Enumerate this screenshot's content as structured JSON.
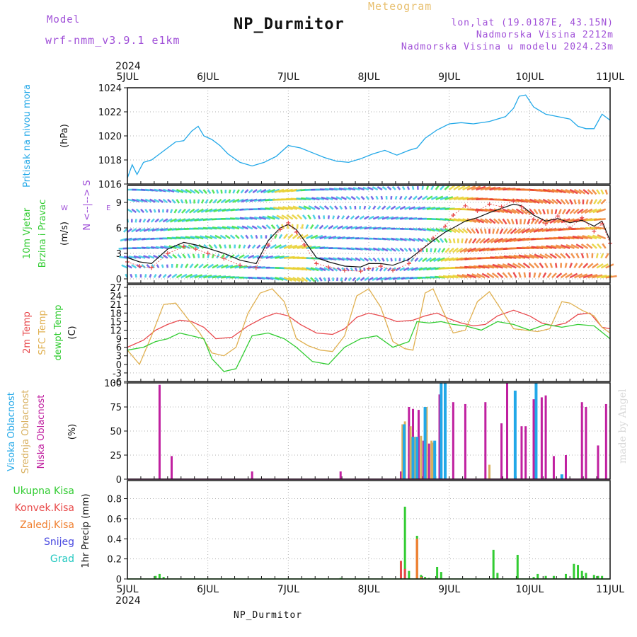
{
  "header": {
    "model_label": "Model",
    "model_name": "wrf-nmm_v3.9.1  e1km",
    "product": "Meteogram",
    "title": "NP_Durmitor",
    "coords": "lon,lat (19.0187E, 43.15N)",
    "elevation": "Nadmorska Visina 2212m",
    "model_elevation": "Nadmorska Visina u modelu 2024.23m"
  },
  "footer": {
    "station": "NP_Durmitor"
  },
  "credit": "made by Angel",
  "colors": {
    "pressure": "#22a8e8",
    "temp2m": "#e8484c",
    "sfc_temp": "#e0b050",
    "dewpt": "#32cc32",
    "cloud_high": "#22a8e8",
    "cloud_mid": "#d8b060",
    "cloud_low": "#c020a0",
    "precip_total": "#32cc32",
    "precip_conv": "#e84848",
    "precip_frz": "#f08030",
    "snow": "#4848e0",
    "hail": "#22c8c0",
    "wind_speed": "#111111",
    "wind_gust": "#e84848",
    "grid": "#b0b0b0"
  },
  "chart_data": [
    {
      "type": "line",
      "title": "",
      "ylabel": [
        "Pritisak na nivou mora",
        "(hPa)"
      ],
      "ylim": [
        1016,
        1024
      ],
      "yticks": [
        "1016",
        "1018",
        "1020",
        "1022",
        "1024"
      ],
      "x_year": "2024",
      "x_ticks": [
        "5JUL",
        "6JUL",
        "7JUL",
        "8JUL",
        "9JUL",
        "10JUL",
        "11JUL"
      ],
      "xlim": [
        0,
        6
      ],
      "series": [
        {
          "key": "pressure",
          "x": [
            0,
            0.06,
            0.12,
            0.2,
            0.3,
            0.4,
            0.5,
            0.6,
            0.7,
            0.8,
            0.88,
            0.95,
            1.05,
            1.15,
            1.25,
            1.4,
            1.55,
            1.7,
            1.85,
            2.0,
            2.15,
            2.3,
            2.45,
            2.6,
            2.75,
            2.9,
            3.05,
            3.2,
            3.35,
            3.5,
            3.6,
            3.7,
            3.85,
            4.0,
            4.15,
            4.3,
            4.5,
            4.7,
            4.8,
            4.87,
            4.95,
            5.05,
            5.2,
            5.35,
            5.5,
            5.6,
            5.7,
            5.8,
            5.9,
            6.0
          ],
          "y": [
            1016.5,
            1017.6,
            1016.8,
            1017.8,
            1018.0,
            1018.5,
            1019.0,
            1019.5,
            1019.6,
            1020.4,
            1020.8,
            1020.0,
            1019.7,
            1019.2,
            1018.5,
            1017.8,
            1017.5,
            1017.8,
            1018.3,
            1019.2,
            1019.0,
            1018.6,
            1018.2,
            1017.9,
            1017.8,
            1018.1,
            1018.5,
            1018.8,
            1018.4,
            1018.8,
            1019.0,
            1019.8,
            1020.5,
            1021.0,
            1021.1,
            1021.0,
            1021.2,
            1021.6,
            1022.3,
            1023.3,
            1023.4,
            1022.4,
            1021.8,
            1021.6,
            1021.4,
            1020.8,
            1020.6,
            1020.6,
            1021.8,
            1021.3
          ]
        }
      ]
    },
    {
      "type": "quiver",
      "title": "",
      "ylabel": [
        "10m Vjetar",
        "Brzina i Pravac",
        "(m/s)"
      ],
      "compass": [
        "N",
        "<--|-->",
        "E",
        "W",
        "S"
      ],
      "ylim": [
        -0.5,
        11
      ],
      "yticks": [
        "0",
        "3",
        "6",
        "9"
      ],
      "series": [
        {
          "key": "wind_speed",
          "name": "",
          "x": [
            0,
            0.15,
            0.3,
            0.5,
            0.7,
            0.85,
            1.0,
            1.2,
            1.4,
            1.6,
            1.75,
            1.9,
            2.0,
            2.1,
            2.2,
            2.35,
            2.5,
            2.7,
            2.9,
            3.0,
            3.15,
            3.3,
            3.5,
            3.65,
            3.8,
            3.95,
            4.05,
            4.2,
            4.35,
            4.5,
            4.65,
            4.8,
            4.9,
            5.05,
            5.2,
            5.35,
            5.5,
            5.65,
            5.8,
            5.9,
            6.0
          ],
          "y": [
            2.5,
            2.0,
            1.8,
            3.5,
            4.3,
            4.0,
            3.6,
            3.0,
            2.2,
            1.8,
            4.5,
            6.0,
            6.4,
            5.8,
            4.5,
            2.5,
            2.0,
            1.5,
            1.4,
            1.8,
            1.8,
            1.6,
            2.3,
            3.4,
            4.5,
            5.5,
            6.0,
            6.8,
            7.2,
            7.8,
            8.3,
            8.8,
            8.6,
            7.5,
            6.8,
            7.1,
            6.6,
            6.9,
            6.2,
            6.8,
            4.5
          ]
        },
        {
          "key": "wind_gust",
          "name": "",
          "x": [
            0,
            0.15,
            0.3,
            0.5,
            0.7,
            0.85,
            1.0,
            1.2,
            1.4,
            1.6,
            1.75,
            1.9,
            2.0,
            2.1,
            2.2,
            2.35,
            2.5,
            2.7,
            2.9,
            3.0,
            3.15,
            3.3,
            3.5,
            3.65,
            3.8,
            3.95,
            4.05,
            4.2,
            4.35,
            4.5,
            4.65,
            4.8,
            4.9,
            5.05,
            5.2,
            5.35,
            5.5,
            5.65,
            5.8,
            5.9,
            6.0
          ],
          "y": [
            2.0,
            1.5,
            1.3,
            3.0,
            3.8,
            3.5,
            3.0,
            2.4,
            1.6,
            1.3,
            4.0,
            5.8,
            6.6,
            5.5,
            4.0,
            1.8,
            1.4,
            1.0,
            0.9,
            1.2,
            1.5,
            1.0,
            1.8,
            3.4,
            4.8,
            6.2,
            7.5,
            8.6,
            8.0,
            8.8,
            8.5,
            9.2,
            8.5,
            7.0,
            6.5,
            7.4,
            6.0,
            7.2,
            5.6,
            6.5,
            4.2
          ]
        }
      ]
    },
    {
      "type": "line",
      "title": "",
      "ylabel": [
        "2m Temp",
        "SFC Temp",
        "dewpt Temp",
        "(C)"
      ],
      "ylim": [
        -6,
        28
      ],
      "yticks": [
        "-6",
        "-3",
        "0",
        "3",
        "6",
        "9",
        "12",
        "15",
        "18",
        "21",
        "24",
        "27"
      ],
      "series": [
        {
          "key": "temp2m",
          "x": [
            0,
            0.2,
            0.35,
            0.5,
            0.65,
            0.8,
            0.95,
            1.1,
            1.3,
            1.5,
            1.7,
            1.85,
            2.0,
            2.15,
            2.35,
            2.55,
            2.7,
            2.85,
            3.0,
            3.15,
            3.35,
            3.55,
            3.7,
            3.85,
            4.0,
            4.15,
            4.3,
            4.45,
            4.6,
            4.8,
            5.0,
            5.15,
            5.3,
            5.45,
            5.6,
            5.75,
            5.9,
            6.0
          ],
          "y": [
            6.0,
            8.5,
            12.0,
            14.0,
            15.5,
            15.0,
            13.0,
            9.0,
            9.5,
            13.5,
            16.5,
            18.0,
            17.0,
            14.0,
            11.0,
            10.5,
            12.5,
            16.5,
            18.0,
            17.0,
            15.0,
            15.5,
            17.0,
            18.0,
            16.0,
            14.5,
            13.5,
            14.0,
            17.0,
            19.0,
            17.0,
            14.5,
            13.5,
            14.5,
            17.5,
            18.0,
            13.0,
            12.5
          ]
        },
        {
          "key": "sfc_temp",
          "x": [
            0,
            0.15,
            0.3,
            0.45,
            0.6,
            0.75,
            0.9,
            1.05,
            1.2,
            1.35,
            1.5,
            1.65,
            1.8,
            1.95,
            2.1,
            2.25,
            2.4,
            2.55,
            2.7,
            2.85,
            3.0,
            3.15,
            3.3,
            3.45,
            3.55,
            3.7,
            3.8,
            3.95,
            4.05,
            4.2,
            4.35,
            4.5,
            4.65,
            4.8,
            4.95,
            5.1,
            5.25,
            5.4,
            5.5,
            5.65,
            5.8,
            5.9,
            6.0
          ],
          "y": [
            5.0,
            0.0,
            10.0,
            21.0,
            21.5,
            16.0,
            11.0,
            4.0,
            3.0,
            6.0,
            18.0,
            25.0,
            26.5,
            22.0,
            9.0,
            6.5,
            5.0,
            4.5,
            10.0,
            24.0,
            26.5,
            20.0,
            8.0,
            5.5,
            5.0,
            25.0,
            26.5,
            17.0,
            11.0,
            12.0,
            22.0,
            25.5,
            19.0,
            12.5,
            12.0,
            11.5,
            12.5,
            22.0,
            21.5,
            19.0,
            17.0,
            13.0,
            11.0
          ]
        },
        {
          "key": "dewpt",
          "x": [
            0,
            0.2,
            0.35,
            0.5,
            0.65,
            0.8,
            0.95,
            1.05,
            1.2,
            1.35,
            1.55,
            1.75,
            1.95,
            2.1,
            2.3,
            2.5,
            2.7,
            2.9,
            3.1,
            3.3,
            3.5,
            3.6,
            3.75,
            3.9,
            4.05,
            4.2,
            4.4,
            4.6,
            4.8,
            5.0,
            5.2,
            5.4,
            5.6,
            5.8,
            6.0
          ],
          "y": [
            5.0,
            6.0,
            8.0,
            9.0,
            11.0,
            10.0,
            9.0,
            2.0,
            -2.5,
            -1.5,
            10.0,
            11.0,
            9.0,
            6.0,
            1.0,
            0.0,
            6.0,
            9.0,
            10.0,
            6.0,
            8.0,
            15.0,
            14.5,
            15.0,
            14.0,
            13.5,
            12.0,
            15.0,
            14.0,
            12.0,
            14.0,
            13.0,
            14.0,
            13.5,
            9.0
          ]
        }
      ]
    },
    {
      "type": "bar",
      "title": "",
      "ylabel": [
        "Visoka Oblacnost",
        "Srednja Oblacnost",
        "Niska Oblacnost",
        "(%)"
      ],
      "ylim": [
        0,
        100
      ],
      "yticks": [
        "0",
        "25",
        "50",
        "75",
        "100"
      ],
      "series": [
        {
          "key": "cloud_low",
          "x": [
            0.4,
            0.55,
            1.55,
            2.65,
            3.5,
            3.4,
            3.5,
            3.55,
            3.62,
            3.68,
            3.75,
            3.88,
            3.95,
            4.05,
            4.2,
            4.45,
            4.5,
            4.65,
            4.72,
            4.9,
            4.95,
            5.05,
            5.15,
            5.2,
            5.3,
            5.45,
            5.65,
            5.7,
            5.85,
            5.95
          ],
          "y": [
            98,
            24,
            8,
            8,
            5,
            8,
            75,
            73,
            72,
            40,
            37,
            88,
            80,
            80,
            78,
            80,
            13,
            58,
            100,
            55,
            55,
            83,
            85,
            87,
            24,
            25,
            80,
            75,
            35,
            78
          ]
        },
        {
          "key": "cloud_mid",
          "x": [
            3.42,
            3.45,
            3.52,
            3.58,
            3.65,
            3.7,
            3.72,
            3.78,
            3.8,
            3.9,
            4.5
          ],
          "y": [
            57,
            60,
            55,
            44,
            45,
            75,
            75,
            40,
            38,
            32,
            15
          ]
        },
        {
          "key": "cloud_high",
          "x": [
            3.44,
            3.55,
            3.6,
            3.7,
            3.82,
            3.9,
            3.95,
            4.82,
            5.08,
            5.4
          ],
          "y": [
            57,
            44,
            44,
            75,
            40,
            100,
            100,
            92,
            100,
            5
          ]
        }
      ]
    },
    {
      "type": "bar",
      "title": "",
      "ylabel": [
        "1hr Precip (mm)"
      ],
      "legend": [
        "Ukupna Kisa",
        "Konvek.Kisa",
        "Zaledj.Kisa",
        "Snijeg",
        "Grad"
      ],
      "ylim": [
        0,
        0.98
      ],
      "yticks": [
        "0",
        "0.2",
        "0.4",
        "0.6",
        "0.8"
      ],
      "series": [
        {
          "key": "precip_total",
          "x": [
            0.35,
            0.4,
            0.45,
            2.65,
            3.4,
            3.45,
            3.5,
            3.6,
            3.65,
            3.7,
            3.75,
            3.85,
            3.9,
            4.55,
            4.6,
            4.85,
            5.05,
            5.1,
            5.2,
            5.3,
            5.45,
            5.55,
            5.6,
            5.65,
            5.7,
            5.8,
            5.85,
            5.9
          ],
          "y": [
            0.03,
            0.05,
            0.02,
            0.01,
            0.18,
            0.72,
            0.08,
            0.43,
            0.04,
            0.02,
            0.01,
            0.12,
            0.07,
            0.29,
            0.06,
            0.24,
            0.02,
            0.05,
            0.03,
            0.03,
            0.05,
            0.15,
            0.14,
            0.08,
            0.06,
            0.04,
            0.03,
            0.03
          ]
        },
        {
          "key": "precip_conv",
          "x": [
            3.4,
            3.45,
            3.6
          ],
          "y": [
            0.18,
            0.1,
            0.4
          ]
        },
        {
          "key": "precip_frz",
          "x": [
            3.6,
            3.65
          ],
          "y": [
            0.4,
            0.02
          ]
        }
      ]
    }
  ]
}
